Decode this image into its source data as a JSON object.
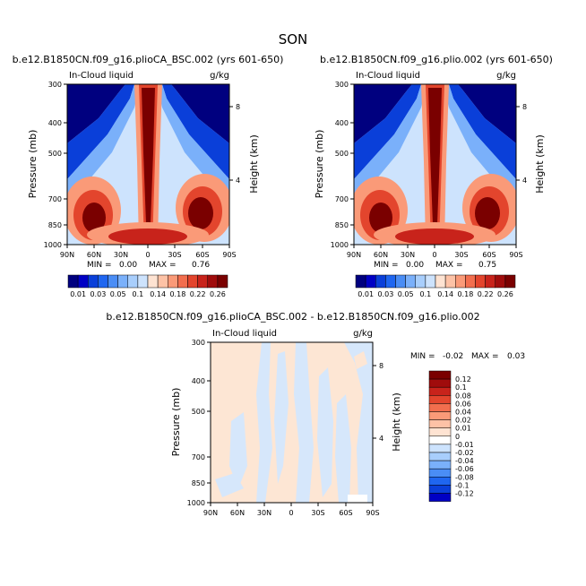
{
  "title": "SON",
  "colors": {
    "blues": [
      "#00007f",
      "#0000c4",
      "#0a3fd9",
      "#1f66f0",
      "#4a8df5",
      "#7ab0fa",
      "#a8cefc",
      "#cde3fd"
    ],
    "reds": [
      "#fee3d2",
      "#fdc2a6",
      "#fa9a78",
      "#f26e4e",
      "#e3452d",
      "#c8231b",
      "#a00c0c",
      "#7a0000"
    ],
    "diff_bg": "#fde6d4",
    "diff_neg": "#d6e7fb"
  },
  "chart_data": [
    {
      "type": "contour",
      "title": "b.e12.B1850CN.f09_g16.plioCA_BSC.002 (yrs 601-650)",
      "left_label": "In-Cloud liquid",
      "right_label": "g/kg",
      "ylabel": "Pressure (mb)",
      "ylabel_right": "Height (km)",
      "y_ticks": [
        "300",
        "400",
        "500",
        "700",
        "850",
        "1000"
      ],
      "y_ticks_right": [
        "8",
        "4"
      ],
      "x_ticks": [
        "90N",
        "60N",
        "30N",
        "0",
        "30S",
        "60S",
        "90S"
      ],
      "min_label": "MIN =",
      "min": "0.00",
      "max_label": "MAX =",
      "max": "0.76",
      "colorbar_labels": [
        "0.01",
        "0.03",
        "0.05",
        "0.1",
        "0.14",
        "0.18",
        "0.22",
        "0.26"
      ]
    },
    {
      "type": "contour",
      "title": "b.e12.B1850CN.f09_g16.plio.002 (yrs 601-650)",
      "left_label": "In-Cloud liquid",
      "right_label": "g/kg",
      "ylabel": "Pressure (mb)",
      "ylabel_right": "Height (km)",
      "y_ticks": [
        "300",
        "400",
        "500",
        "700",
        "850",
        "1000"
      ],
      "y_ticks_right": [
        "8",
        "4"
      ],
      "x_ticks": [
        "90N",
        "60N",
        "30N",
        "0",
        "30S",
        "60S",
        "90S"
      ],
      "min_label": "MIN =",
      "min": "0.00",
      "max_label": "MAX =",
      "max": "0.75",
      "colorbar_labels": [
        "0.01",
        "0.03",
        "0.05",
        "0.1",
        "0.14",
        "0.18",
        "0.22",
        "0.26"
      ]
    },
    {
      "type": "contour",
      "title": "b.e12.B1850CN.f09_g16.plioCA_BSC.002 - b.e12.B1850CN.f09_g16.plio.002",
      "left_label": "In-Cloud liquid",
      "right_label": "g/kg",
      "ylabel": "Pressure (mb)",
      "ylabel_right": "Height (km)",
      "y_ticks": [
        "300",
        "400",
        "500",
        "700",
        "850",
        "1000"
      ],
      "y_ticks_right": [
        "8",
        "4"
      ],
      "x_ticks": [
        "90N",
        "60N",
        "30N",
        "0",
        "30S",
        "60S",
        "90S"
      ],
      "min_label": "MIN =",
      "min": "-0.02",
      "max_label": "MAX =",
      "max": "0.03",
      "colorbar_labels": [
        "0.12",
        "0.1",
        "0.08",
        "0.06",
        "0.04",
        "0.02",
        "0.01",
        "0",
        "-0.01",
        "-0.02",
        "-0.04",
        "-0.06",
        "-0.08",
        "-0.1",
        "-0.12"
      ]
    }
  ]
}
